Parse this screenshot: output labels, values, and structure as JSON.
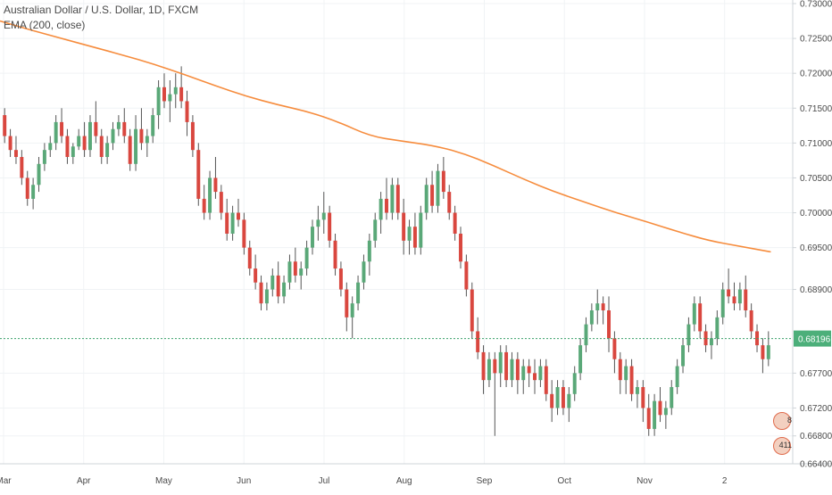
{
  "chart_data": {
    "type": "candlestick",
    "title": "Australian Dollar / U.S. Dollar, 1D, FXCM",
    "indicator": "EMA (200, close)",
    "colors": {
      "up": "#5aa878",
      "down": "#d9473f",
      "ema": "#f68c3d",
      "last_price_line": "#3aa06a",
      "last_price_box": "#4caf7a",
      "grid": "#f0f3f5",
      "axis": "#cfd4d8",
      "text": "#4a4a4a"
    },
    "ylim": [
      0.664,
      0.73
    ],
    "y_ticks": [
      "0.73000",
      "0.72500",
      "0.72000",
      "0.71500",
      "0.71000",
      "0.70500",
      "0.70000",
      "0.69500",
      "0.68900",
      "0.67700",
      "0.67200",
      "0.66800",
      "0.66400"
    ],
    "last_price": "0.68196",
    "x_labels": [
      "Mar",
      "Apr",
      "May",
      "Jun",
      "Jul",
      "Aug",
      "Sep",
      "Oct",
      "Nov",
      "2"
    ],
    "ema": [
      0.7275,
      0.7262,
      0.725,
      0.7238,
      0.7226,
      0.7213,
      0.7198,
      0.7182,
      0.7167,
      0.7155,
      0.7145,
      0.713,
      0.711,
      0.7103,
      0.7097,
      0.7086,
      0.7068,
      0.7048,
      0.703,
      0.7015,
      0.7,
      0.6987,
      0.6973,
      0.696,
      0.6952,
      0.6944
    ],
    "events": [
      "8",
      "411"
    ],
    "ohlc": [
      [
        0.714,
        0.715,
        0.71,
        0.711
      ],
      [
        0.711,
        0.712,
        0.708,
        0.709
      ],
      [
        0.709,
        0.711,
        0.707,
        0.708
      ],
      [
        0.708,
        0.709,
        0.704,
        0.705
      ],
      [
        0.705,
        0.706,
        0.701,
        0.702
      ],
      [
        0.702,
        0.705,
        0.7005,
        0.704
      ],
      [
        0.704,
        0.708,
        0.703,
        0.707
      ],
      [
        0.707,
        0.71,
        0.706,
        0.709
      ],
      [
        0.709,
        0.711,
        0.708,
        0.71
      ],
      [
        0.71,
        0.714,
        0.709,
        0.713
      ],
      [
        0.713,
        0.715,
        0.71,
        0.711
      ],
      [
        0.711,
        0.712,
        0.707,
        0.708
      ],
      [
        0.708,
        0.71,
        0.707,
        0.7095
      ],
      [
        0.7095,
        0.712,
        0.709,
        0.711
      ],
      [
        0.711,
        0.713,
        0.708,
        0.709
      ],
      [
        0.709,
        0.714,
        0.708,
        0.713
      ],
      [
        0.713,
        0.716,
        0.71,
        0.711
      ],
      [
        0.711,
        0.712,
        0.707,
        0.708
      ],
      [
        0.708,
        0.711,
        0.707,
        0.71
      ],
      [
        0.71,
        0.713,
        0.709,
        0.712
      ],
      [
        0.712,
        0.714,
        0.711,
        0.713
      ],
      [
        0.713,
        0.715,
        0.71,
        0.711
      ],
      [
        0.711,
        0.712,
        0.706,
        0.707
      ],
      [
        0.707,
        0.714,
        0.706,
        0.712
      ],
      [
        0.712,
        0.715,
        0.709,
        0.71
      ],
      [
        0.71,
        0.712,
        0.708,
        0.711
      ],
      [
        0.711,
        0.715,
        0.71,
        0.714
      ],
      [
        0.714,
        0.719,
        0.712,
        0.718
      ],
      [
        0.718,
        0.72,
        0.715,
        0.716
      ],
      [
        0.716,
        0.719,
        0.713,
        0.717
      ],
      [
        0.717,
        0.72,
        0.715,
        0.718
      ],
      [
        0.718,
        0.721,
        0.715,
        0.716
      ],
      [
        0.716,
        0.7175,
        0.711,
        0.713
      ],
      [
        0.713,
        0.714,
        0.708,
        0.709
      ],
      [
        0.709,
        0.71,
        0.701,
        0.702
      ],
      [
        0.702,
        0.704,
        0.699,
        0.7
      ],
      [
        0.7,
        0.706,
        0.699,
        0.705
      ],
      [
        0.705,
        0.708,
        0.702,
        0.703
      ],
      [
        0.703,
        0.704,
        0.699,
        0.7
      ],
      [
        0.7,
        0.702,
        0.696,
        0.697
      ],
      [
        0.697,
        0.701,
        0.696,
        0.7
      ],
      [
        0.7,
        0.702,
        0.698,
        0.699
      ],
      [
        0.699,
        0.7,
        0.694,
        0.695
      ],
      [
        0.695,
        0.696,
        0.691,
        0.692
      ],
      [
        0.692,
        0.694,
        0.689,
        0.69
      ],
      [
        0.69,
        0.691,
        0.686,
        0.687
      ],
      [
        0.687,
        0.69,
        0.686,
        0.689
      ],
      [
        0.689,
        0.692,
        0.688,
        0.691
      ],
      [
        0.691,
        0.693,
        0.687,
        0.688
      ],
      [
        0.688,
        0.691,
        0.687,
        0.69
      ],
      [
        0.69,
        0.694,
        0.689,
        0.693
      ],
      [
        0.693,
        0.695,
        0.69,
        0.691
      ],
      [
        0.691,
        0.693,
        0.689,
        0.692
      ],
      [
        0.692,
        0.696,
        0.691,
        0.695
      ],
      [
        0.695,
        0.699,
        0.694,
        0.698
      ],
      [
        0.698,
        0.701,
        0.696,
        0.699
      ],
      [
        0.699,
        0.703,
        0.697,
        0.7
      ],
      [
        0.7,
        0.701,
        0.695,
        0.696
      ],
      [
        0.696,
        0.697,
        0.691,
        0.692
      ],
      [
        0.692,
        0.693,
        0.688,
        0.689
      ],
      [
        0.689,
        0.69,
        0.683,
        0.685
      ],
      [
        0.685,
        0.688,
        0.682,
        0.687
      ],
      [
        0.687,
        0.691,
        0.686,
        0.69
      ],
      [
        0.69,
        0.694,
        0.689,
        0.693
      ],
      [
        0.693,
        0.697,
        0.691,
        0.696
      ],
      [
        0.696,
        0.7,
        0.695,
        0.699
      ],
      [
        0.699,
        0.703,
        0.697,
        0.702
      ],
      [
        0.702,
        0.705,
        0.699,
        0.7
      ],
      [
        0.7,
        0.705,
        0.699,
        0.704
      ],
      [
        0.704,
        0.705,
        0.699,
        0.7
      ],
      [
        0.7,
        0.702,
        0.694,
        0.696
      ],
      [
        0.696,
        0.699,
        0.694,
        0.698
      ],
      [
        0.698,
        0.7,
        0.694,
        0.695
      ],
      [
        0.695,
        0.701,
        0.694,
        0.7
      ],
      [
        0.7,
        0.705,
        0.699,
        0.704
      ],
      [
        0.704,
        0.706,
        0.7,
        0.701
      ],
      [
        0.701,
        0.707,
        0.7,
        0.706
      ],
      [
        0.706,
        0.708,
        0.702,
        0.703
      ],
      [
        0.703,
        0.704,
        0.699,
        0.7
      ],
      [
        0.7,
        0.701,
        0.696,
        0.697
      ],
      [
        0.697,
        0.698,
        0.692,
        0.693
      ],
      [
        0.693,
        0.694,
        0.688,
        0.689
      ],
      [
        0.689,
        0.69,
        0.682,
        0.683
      ],
      [
        0.683,
        0.685,
        0.679,
        0.68
      ],
      [
        0.68,
        0.681,
        0.674,
        0.676
      ],
      [
        0.676,
        0.68,
        0.675,
        0.679
      ],
      [
        0.679,
        0.68,
        0.668,
        0.677
      ],
      [
        0.677,
        0.681,
        0.675,
        0.68
      ],
      [
        0.68,
        0.681,
        0.675,
        0.676
      ],
      [
        0.676,
        0.68,
        0.675,
        0.679
      ],
      [
        0.679,
        0.68,
        0.674,
        0.676
      ],
      [
        0.676,
        0.679,
        0.674,
        0.678
      ],
      [
        0.678,
        0.679,
        0.675,
        0.677
      ],
      [
        0.677,
        0.679,
        0.674,
        0.676
      ],
      [
        0.676,
        0.679,
        0.675,
        0.678
      ],
      [
        0.678,
        0.679,
        0.673,
        0.674
      ],
      [
        0.674,
        0.676,
        0.67,
        0.672
      ],
      [
        0.672,
        0.676,
        0.671,
        0.675
      ],
      [
        0.675,
        0.676,
        0.671,
        0.672
      ],
      [
        0.672,
        0.675,
        0.67,
        0.674
      ],
      [
        0.674,
        0.678,
        0.673,
        0.677
      ],
      [
        0.677,
        0.682,
        0.676,
        0.681
      ],
      [
        0.681,
        0.685,
        0.68,
        0.684
      ],
      [
        0.684,
        0.687,
        0.683,
        0.686
      ],
      [
        0.686,
        0.689,
        0.684,
        0.687
      ],
      [
        0.687,
        0.688,
        0.684,
        0.686
      ],
      [
        0.686,
        0.688,
        0.68,
        0.682
      ],
      [
        0.682,
        0.683,
        0.677,
        0.679
      ],
      [
        0.679,
        0.68,
        0.674,
        0.676
      ],
      [
        0.676,
        0.679,
        0.674,
        0.678
      ],
      [
        0.678,
        0.679,
        0.673,
        0.674
      ],
      [
        0.674,
        0.676,
        0.672,
        0.675
      ],
      [
        0.675,
        0.676,
        0.67,
        0.672
      ],
      [
        0.672,
        0.674,
        0.668,
        0.669
      ],
      [
        0.669,
        0.674,
        0.668,
        0.673
      ],
      [
        0.673,
        0.675,
        0.67,
        0.671
      ],
      [
        0.671,
        0.673,
        0.669,
        0.672
      ],
      [
        0.672,
        0.676,
        0.671,
        0.675
      ],
      [
        0.675,
        0.679,
        0.674,
        0.678
      ],
      [
        0.678,
        0.682,
        0.677,
        0.681
      ],
      [
        0.681,
        0.685,
        0.68,
        0.684
      ],
      [
        0.684,
        0.688,
        0.683,
        0.687
      ],
      [
        0.687,
        0.688,
        0.682,
        0.683
      ],
      [
        0.683,
        0.684,
        0.68,
        0.681
      ],
      [
        0.681,
        0.683,
        0.679,
        0.682
      ],
      [
        0.682,
        0.686,
        0.681,
        0.685
      ],
      [
        0.685,
        0.69,
        0.684,
        0.689
      ],
      [
        0.689,
        0.692,
        0.687,
        0.688
      ],
      [
        0.688,
        0.69,
        0.686,
        0.687
      ],
      [
        0.687,
        0.69,
        0.686,
        0.689
      ],
      [
        0.689,
        0.691,
        0.685,
        0.686
      ],
      [
        0.686,
        0.687,
        0.682,
        0.683
      ],
      [
        0.683,
        0.684,
        0.68,
        0.681
      ],
      [
        0.681,
        0.682,
        0.677,
        0.679
      ],
      [
        0.679,
        0.683,
        0.678,
        0.681
      ]
    ]
  }
}
